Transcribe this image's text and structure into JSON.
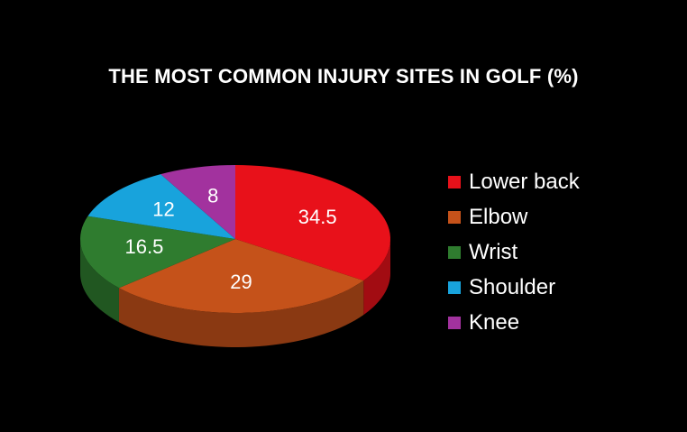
{
  "chart_data": {
    "type": "pie",
    "title": "THE MOST COMMON INJURY SITES IN GOLF (%)",
    "categories": [
      "Lower back",
      "Elbow",
      "Wrist",
      "Shoulder",
      "Knee"
    ],
    "values": [
      34.5,
      29,
      16.5,
      12,
      8
    ],
    "data_labels": [
      "34.5",
      "29",
      "16.5",
      "12",
      "8"
    ],
    "colors": [
      "#e8111a",
      "#c5521a",
      "#2f7c2f",
      "#18a3dc",
      "#a2329e"
    ],
    "legend_position": "right",
    "style": "3d"
  }
}
